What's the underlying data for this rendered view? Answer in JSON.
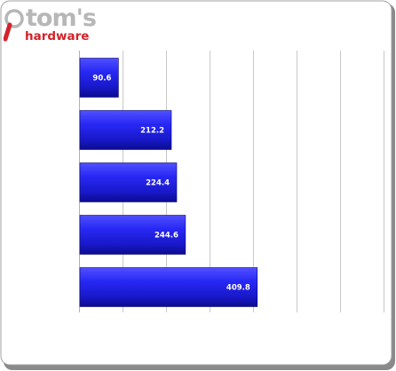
{
  "branding": {
    "logo_line1": "tom's",
    "logo_line2": "hardware"
  },
  "colors": {
    "bar_dark": "#1010a0",
    "bar_mid": "#2222f0",
    "bar_light": "#5050ff",
    "grid": "#c8c8c8",
    "border": "#a0a0a0",
    "shadow": "#8a8a8a",
    "logo_gray": "#b7b7b7",
    "logo_red": "#d2232a"
  },
  "chart_data": {
    "type": "bar",
    "orientation": "horizontal",
    "categories": [
      "",
      "",
      "",
      "",
      ""
    ],
    "values": [
      90.6,
      212.2,
      224.4,
      244.6,
      409.8
    ],
    "value_labels": [
      "90.6",
      "212.2",
      "224.4",
      "244.6",
      "409.8"
    ],
    "title": "",
    "xlabel": "",
    "ylabel": "",
    "xlim": [
      0,
      700
    ],
    "grid": true,
    "legend": "none"
  }
}
